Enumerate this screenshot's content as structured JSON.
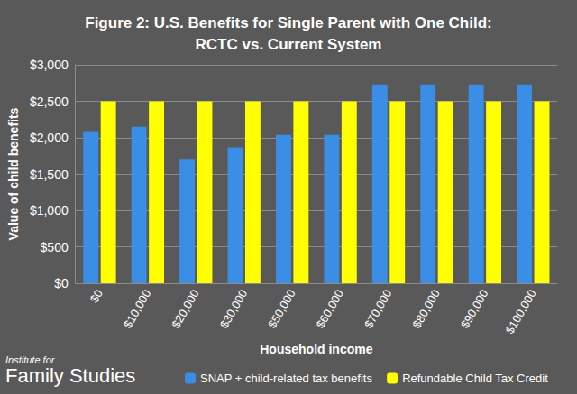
{
  "chart_data": {
    "type": "bar",
    "title": "Figure 2: U.S. Benefits for Single Parent with One Child:\nRCTC vs. Current System",
    "x_label": "Household income",
    "y_label": "Value of child benefits",
    "annotations": [
      "Institute for",
      "Family Studies"
    ],
    "categories": [
      "$0",
      "$10,000",
      "$20,000",
      "$30,000",
      "$50,000",
      "$60,000",
      "$70,000",
      "$80,000",
      "$90,000",
      "$100,000"
    ],
    "series": [
      {
        "name": "SNAP + child-related tax benefits",
        "color": "#3a8ee6",
        "values": [
          2080,
          2150,
          1700,
          1870,
          2040,
          2040,
          2730,
          2730,
          2730,
          2730
        ]
      },
      {
        "name": "Refundable Child Tax Credit",
        "color": "#ffff00",
        "values": [
          2500,
          2500,
          2500,
          2500,
          2500,
          2500,
          2500,
          2500,
          2500,
          2500
        ]
      }
    ],
    "ylim": [
      0,
      3000
    ],
    "yticks": [
      {
        "value": 0,
        "label": "$0"
      },
      {
        "value": 500,
        "label": "$500"
      },
      {
        "value": 1000,
        "label": "$1,000"
      },
      {
        "value": 1500,
        "label": "$1,500"
      },
      {
        "value": 2000,
        "label": "$2,000"
      },
      {
        "value": 2500,
        "label": "$2,500"
      },
      {
        "value": 3000,
        "label": "$3,000"
      }
    ],
    "grid": true,
    "legend": "bottom"
  }
}
